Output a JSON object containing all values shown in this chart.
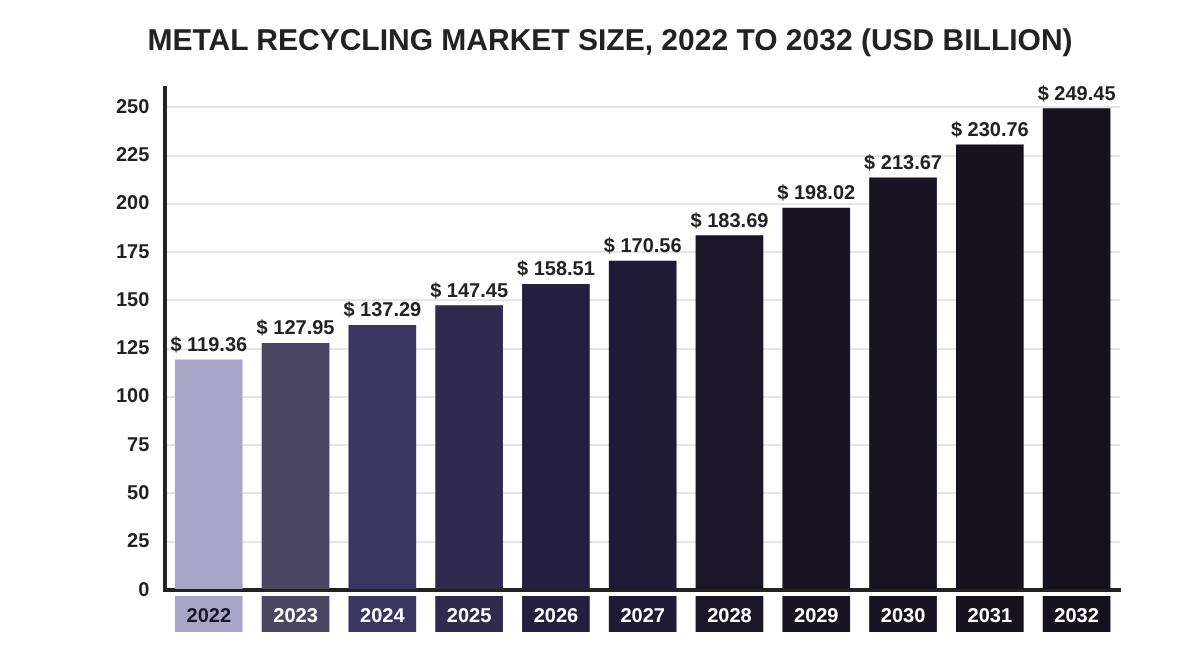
{
  "chart_data": {
    "type": "bar",
    "title": "METAL RECYCLING MARKET SIZE, 2022 TO 2032 (USD BILLION)",
    "categories": [
      "2022",
      "2023",
      "2024",
      "2025",
      "2026",
      "2027",
      "2028",
      "2029",
      "2030",
      "2031",
      "2032"
    ],
    "values": [
      119.36,
      127.95,
      137.29,
      147.45,
      158.51,
      170.56,
      183.69,
      198.02,
      213.67,
      230.76,
      249.45
    ],
    "value_labels": [
      "$ 119.36",
      "$ 127.95",
      "$ 137.29",
      "$ 147.45",
      "$ 158.51",
      "$ 170.56",
      "$ 183.69",
      "$ 198.02",
      "$ 213.67",
      "$ 230.76",
      "$ 249.45"
    ],
    "colors": [
      "#a8a5c8",
      "#4a4563",
      "#3a3560",
      "#2f2a4e",
      "#241f40",
      "#1f1a35",
      "#1a1628",
      "#181424",
      "#171322",
      "#161220",
      "#15111e"
    ],
    "ylim": [
      0,
      260
    ],
    "yticks": [
      0,
      25,
      50,
      75,
      100,
      125,
      150,
      175,
      200,
      225,
      250
    ],
    "grid": "y",
    "legend": false
  }
}
